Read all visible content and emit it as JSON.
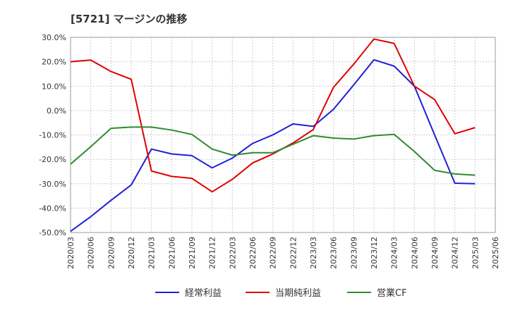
{
  "chart_data": {
    "type": "line",
    "title": "[5721]  マージンの推移",
    "xlabel": "",
    "ylabel": "",
    "ylim": [
      -50,
      30
    ],
    "yticks": [
      "30.0%",
      "20.0%",
      "10.0%",
      "0.0%",
      "-10.0%",
      "-20.0%",
      "-30.0%",
      "-40.0%",
      "-50.0%"
    ],
    "categories": [
      "2020/03",
      "2020/06",
      "2020/09",
      "2020/12",
      "2021/03",
      "2021/06",
      "2021/09",
      "2021/12",
      "2022/03",
      "2022/06",
      "2022/09",
      "2022/12",
      "2023/03",
      "2023/06",
      "2023/09",
      "2023/12",
      "2024/03",
      "2024/06",
      "2024/09",
      "2024/12",
      "2025/03",
      "2025/06"
    ],
    "grid": true,
    "legend_position": "bottom",
    "series": [
      {
        "name": "経常利益",
        "color": "#1f1fd6",
        "values": [
          -49.5,
          -43.5,
          -36.8,
          -30.5,
          -15.8,
          -17.8,
          -18.5,
          -23.5,
          -19.5,
          -13.5,
          -10.0,
          -5.5,
          -6.5,
          0.5,
          10.5,
          20.8,
          18.2,
          10.0,
          -10.0,
          -29.8,
          -30.0,
          null
        ]
      },
      {
        "name": "当期純利益",
        "color": "#e00000",
        "values": [
          20.0,
          20.7,
          16.0,
          12.8,
          -24.8,
          -27.0,
          -27.8,
          -33.3,
          -28.2,
          -21.5,
          -17.8,
          -13.3,
          -7.8,
          9.5,
          19.0,
          29.3,
          27.5,
          10.0,
          4.5,
          -9.5,
          -7.0,
          null
        ]
      },
      {
        "name": "営業CF",
        "color": "#2e8b2e",
        "values": [
          -22.0,
          -14.8,
          -7.3,
          -6.8,
          -6.8,
          -8.0,
          -9.8,
          -15.8,
          -18.3,
          -17.3,
          -17.3,
          -13.8,
          -10.3,
          -11.3,
          -11.7,
          -10.3,
          -9.8,
          -16.8,
          -24.5,
          -26.0,
          -26.5,
          null
        ]
      }
    ]
  }
}
